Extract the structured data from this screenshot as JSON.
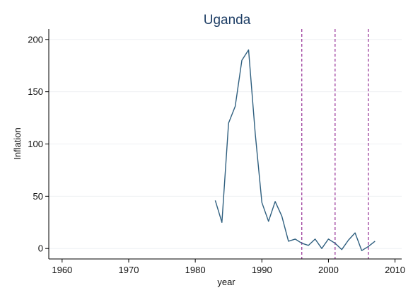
{
  "chart_data": {
    "type": "line",
    "title": "Uganda",
    "xlabel": "year",
    "ylabel": "Inflation",
    "xlim": [
      1958,
      2011
    ],
    "ylim": [
      -10,
      210
    ],
    "xticks": [
      1960,
      1970,
      1980,
      1990,
      2000,
      2010
    ],
    "yticks": [
      0,
      50,
      100,
      150,
      200
    ],
    "grid": true,
    "legend": "none",
    "series": [
      {
        "color": "#2f5f7f",
        "x": [
          1983,
          1984,
          1985,
          1986,
          1987,
          1988,
          1989,
          1990,
          1991,
          1992,
          1993,
          1994,
          1995,
          1996,
          1997,
          1998,
          1999,
          2000,
          2001,
          2002,
          2003,
          2004,
          2005,
          2006,
          2007
        ],
        "y": [
          46,
          25,
          120,
          136,
          180,
          190,
          110,
          44,
          26,
          45,
          31,
          7,
          9,
          5,
          3,
          9,
          0,
          9,
          5,
          -1,
          8,
          15,
          -2,
          2,
          7
        ]
      }
    ],
    "vertical_lines": {
      "color": "#8b1a8b",
      "style": "dashed",
      "x": [
        1996,
        2001,
        2006
      ]
    }
  }
}
